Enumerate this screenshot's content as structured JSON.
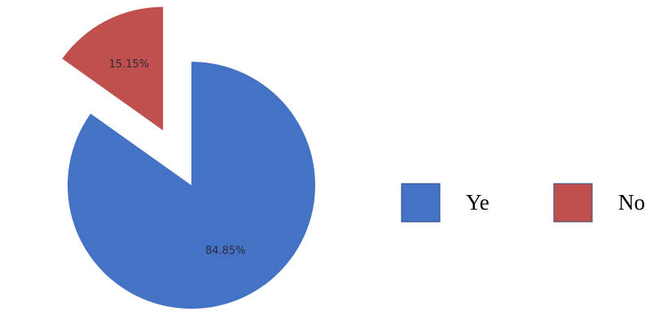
{
  "chart_data": {
    "type": "pie",
    "categories": [
      "Ye",
      "No"
    ],
    "values": [
      84.85,
      15.15
    ],
    "value_labels": [
      "84.85%",
      "15.15%"
    ],
    "colors": [
      "#4472c4",
      "#c0504d"
    ],
    "exploded": [
      false,
      true
    ],
    "legend": "right"
  }
}
